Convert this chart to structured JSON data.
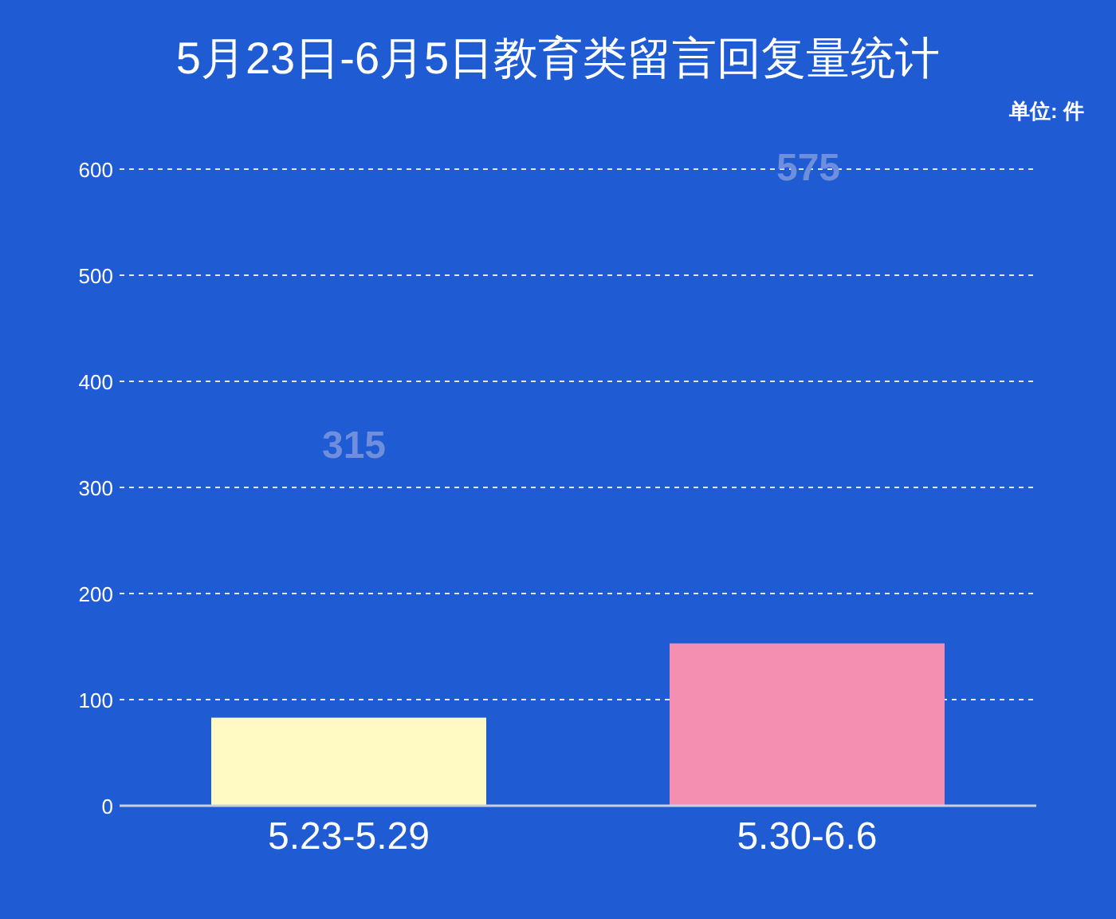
{
  "chart_data": {
    "type": "bar",
    "title": "5月23日-6月5日教育类留言回复量统计",
    "categories": [
      "5.23-5.29",
      "5.30-6.6"
    ],
    "values": [
      83,
      153
    ],
    "colors": [
      "#fff9c4",
      "#f48fb1"
    ],
    "ylim": [
      0,
      600
    ],
    "yticks": [
      0,
      100,
      200,
      300,
      400,
      500,
      600
    ],
    "grid": "y",
    "annotations": [
      "单位: 件",
      "315",
      "575"
    ]
  }
}
